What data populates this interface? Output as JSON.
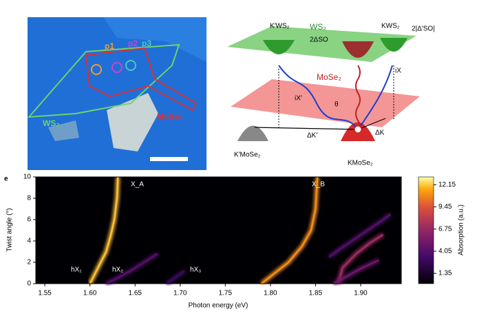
{
  "panel_label": "e",
  "micrograph": {
    "labels": [
      "p1",
      "p2",
      "p3",
      "WS₂",
      "MoSe₂"
    ]
  },
  "schematic": {
    "labels": [
      "K′WS₂",
      "WS₂",
      "KWS₂",
      "2|Δ′SO|",
      "2ΔSO",
      "iX",
      "MoSe₂",
      "iX′",
      "θ",
      "ΔK′",
      "ΔK",
      "K′MoSe₂",
      "KMoSe₂"
    ]
  },
  "chart_data": {
    "type": "heatmap",
    "xlabel": "Photon energy (eV)",
    "ylabel": "Twist angle (°)",
    "colorbar_label": "Absorption (a.u.)",
    "xlim": [
      1.54,
      1.945
    ],
    "ylim": [
      0,
      10
    ],
    "xticks": [
      1.55,
      {
        "value": 1.6,
        "label": "1.60"
      },
      1.65,
      {
        "value": 1.7,
        "label": "1.70"
      },
      1.75,
      {
        "value": 1.8,
        "label": "1.80"
      },
      1.85,
      {
        "value": 1.9,
        "label": "1.90"
      }
    ],
    "yticks": [
      0,
      2,
      4,
      6,
      8,
      10
    ],
    "clim": [
      0.1,
      13.1
    ],
    "cticks": [
      1.35,
      4.05,
      6.75,
      9.45,
      12.15
    ],
    "annotations": [
      "hX₁",
      "hX₂",
      "hX₃",
      "X_A",
      "X_B"
    ],
    "traces": [
      {
        "x": [
          1.6,
          1.606,
          1.612,
          1.618,
          1.623,
          1.627,
          1.63,
          1.631
        ],
        "y": [
          0,
          1,
          2,
          3,
          4.5,
          6,
          8,
          10
        ],
        "intensity": 12
      },
      {
        "x": [
          1.618,
          1.63,
          1.645,
          1.66,
          1.675
        ],
        "y": [
          0,
          0.5,
          1.2,
          2,
          2.8
        ],
        "intensity": 4
      },
      {
        "x": [
          1.685,
          1.695,
          1.705
        ],
        "y": [
          0,
          0.6,
          1.2
        ],
        "intensity": 3
      },
      {
        "x": [
          1.79,
          1.805,
          1.82,
          1.835,
          1.845,
          1.85,
          1.852
        ],
        "y": [
          0,
          1,
          2,
          3.5,
          5,
          7,
          10
        ],
        "intensity": 11
      },
      {
        "x": [
          1.865,
          1.878,
          1.892,
          1.906,
          1.92,
          1.933
        ],
        "y": [
          2.5,
          3.3,
          4.1,
          4.9,
          5.7,
          6.5
        ],
        "intensity": 4
      },
      {
        "x": [
          1.875,
          1.88,
          1.895,
          1.91,
          1.925
        ],
        "y": [
          0,
          1.5,
          2.8,
          3.8,
          4.6
        ],
        "intensity": 7
      },
      {
        "x": [
          1.87,
          1.885,
          1.9,
          1.92
        ],
        "y": [
          0,
          0.7,
          1.4,
          2.2
        ],
        "intensity": 5
      }
    ]
  }
}
